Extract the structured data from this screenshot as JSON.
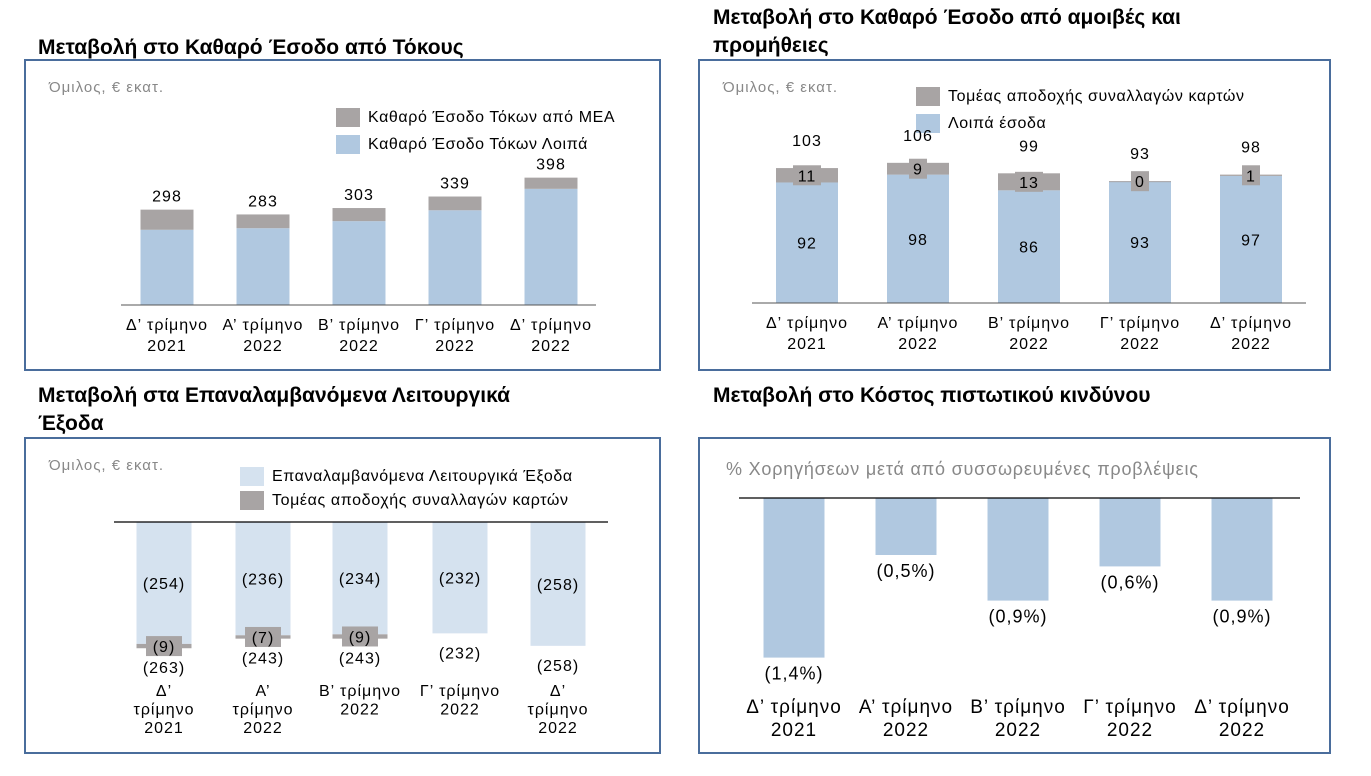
{
  "chart_data": [
    {
      "type": "bar",
      "stacked": true,
      "title": "Μεταβολή στο Καθαρό Έσοδο από Τόκους",
      "subtitle": "Όμιλος, € εκατ.",
      "categories": [
        [
          "Δ’ τρίμηνο",
          "2021"
        ],
        [
          "Α’ τρίμηνο",
          "2022"
        ],
        [
          "Β’ τρίμηνο",
          "2022"
        ],
        [
          "Γ’ τρίμηνο",
          "2022"
        ],
        [
          "Δ’ τρίμηνο",
          "2022"
        ]
      ],
      "series": [
        {
          "name": "Καθαρό Έσοδο Τόκων Λοιπά",
          "values": [
            235,
            240,
            262,
            296,
            363
          ],
          "color": "#b0c8e0"
        },
        {
          "name": "Καθαρό Έσοδο Τόκων από ΜΕΑ",
          "values": [
            63,
            43,
            41,
            43,
            35
          ],
          "color": "#a8a4a4"
        }
      ],
      "totals": [
        298,
        283,
        303,
        339,
        398
      ],
      "legend": [
        {
          "label": "Καθαρό Έσοδο Τόκων από ΜΕΑ",
          "color": "#a8a4a4"
        },
        {
          "label": "Καθαρό Έσοδο Τόκων Λοιπά",
          "color": "#b0c8e0"
        }
      ],
      "ylim": [
        0,
        450
      ]
    },
    {
      "type": "bar",
      "stacked": true,
      "title": "Μεταβολή στο Καθαρό Έσοδο από αμοιβές και προμήθειες",
      "title_lines": [
        "Μεταβολή στο Καθαρό Έσοδο από αμοιβές και",
        "προμήθειες"
      ],
      "subtitle": "Όμιλος, € εκατ.",
      "categories": [
        [
          "Δ’ τρίμηνο",
          "2021"
        ],
        [
          "Α’ τρίμηνο",
          "2022"
        ],
        [
          "Β’ τρίμηνο",
          "2022"
        ],
        [
          "Γ’ τρίμηνο",
          "2022"
        ],
        [
          "Δ’ τρίμηνο",
          "2022"
        ]
      ],
      "series": [
        {
          "name": "Λοιπά έσοδα",
          "values": [
            92,
            98,
            86,
            93,
            97
          ],
          "labels": [
            "92",
            "98",
            "86",
            "93",
            "97"
          ],
          "color": "#b0c8e0"
        },
        {
          "name": "Τομέας αποδοχής συναλλαγών καρτών",
          "values": [
            11,
            9,
            13,
            0,
            1
          ],
          "labels": [
            "11",
            "9",
            "13",
            "0",
            "1"
          ],
          "color": "#a8a4a4"
        }
      ],
      "totals": [
        103,
        106,
        99,
        93,
        98
      ],
      "legend": [
        {
          "label": "Τομέας αποδοχής συναλλαγών καρτών",
          "color": "#a8a4a4"
        },
        {
          "label": "Λοιπά έσοδα",
          "color": "#b0c8e0"
        }
      ],
      "ylim": [
        0,
        130
      ]
    },
    {
      "type": "bar",
      "stacked": true,
      "negative": true,
      "title": "Μεταβολή στα Επαναλαμβανόμενα Λειτουργικά Έξοδα",
      "title_lines": [
        "Μεταβολή στα Επαναλαμβανόμενα Λειτουργικά",
        "Έξοδα"
      ],
      "subtitle": "Όμιλος, € εκατ.",
      "categories": [
        [
          "Δ’",
          "τρίμηνο",
          "2021"
        ],
        [
          "Α’",
          "τρίμηνο",
          "2022"
        ],
        [
          "Β’ τρίμηνο",
          "2022"
        ],
        [
          "Γ’ τρίμηνο",
          "2022"
        ],
        [
          "Δ’",
          "τρίμηνο",
          "2022"
        ]
      ],
      "series": [
        {
          "name": "Επαναλαμβανόμενα Λειτουργικά Έξοδα",
          "values": [
            -254,
            -236,
            -234,
            -232,
            -258
          ],
          "labels": [
            "(254)",
            "(236)",
            "(234)",
            "(232)",
            "(258)"
          ],
          "color": "#d5e2ef"
        },
        {
          "name": "Τομέας αποδοχής συναλλαγών καρτών",
          "values": [
            -9,
            -7,
            -9,
            0,
            0
          ],
          "labels": [
            "(9)",
            "(7)",
            "(9)",
            "",
            ""
          ],
          "color": "#a8a4a4"
        }
      ],
      "totals": [
        "(263)",
        "(243)",
        "(243)",
        "(232)",
        "(258)"
      ],
      "legend": [
        {
          "label": "Επαναλαμβανόμενα Λειτουργικά Έξοδα",
          "color": "#d5e2ef"
        },
        {
          "label": "Τομέας αποδοχής συναλλαγών καρτών",
          "color": "#a8a4a4"
        }
      ],
      "ylim": [
        -270,
        0
      ]
    },
    {
      "type": "bar",
      "negative": true,
      "title": "Μεταβολή στο Κόστος πιστωτικού κινδύνου",
      "subtitle": "% Χορηγήσεων μετά από συσσωρευμένες προβλέψεις",
      "categories": [
        [
          "Δ’ τρίμηνο",
          "2021"
        ],
        [
          "Α’ τρίμηνο",
          "2022"
        ],
        [
          "Β’ τρίμηνο",
          "2022"
        ],
        [
          "Γ’ τρίμηνο",
          "2022"
        ],
        [
          "Δ’ τρίμηνο",
          "2022"
        ]
      ],
      "values": [
        -1.4,
        -0.5,
        -0.9,
        -0.6,
        -0.9
      ],
      "labels": [
        "(1,4%)",
        "(0,5%)",
        "(0,9%)",
        "(0,6%)",
        "(0,9%)"
      ],
      "color": "#b0c8e0",
      "ylim": [
        -1.5,
        0
      ]
    }
  ]
}
